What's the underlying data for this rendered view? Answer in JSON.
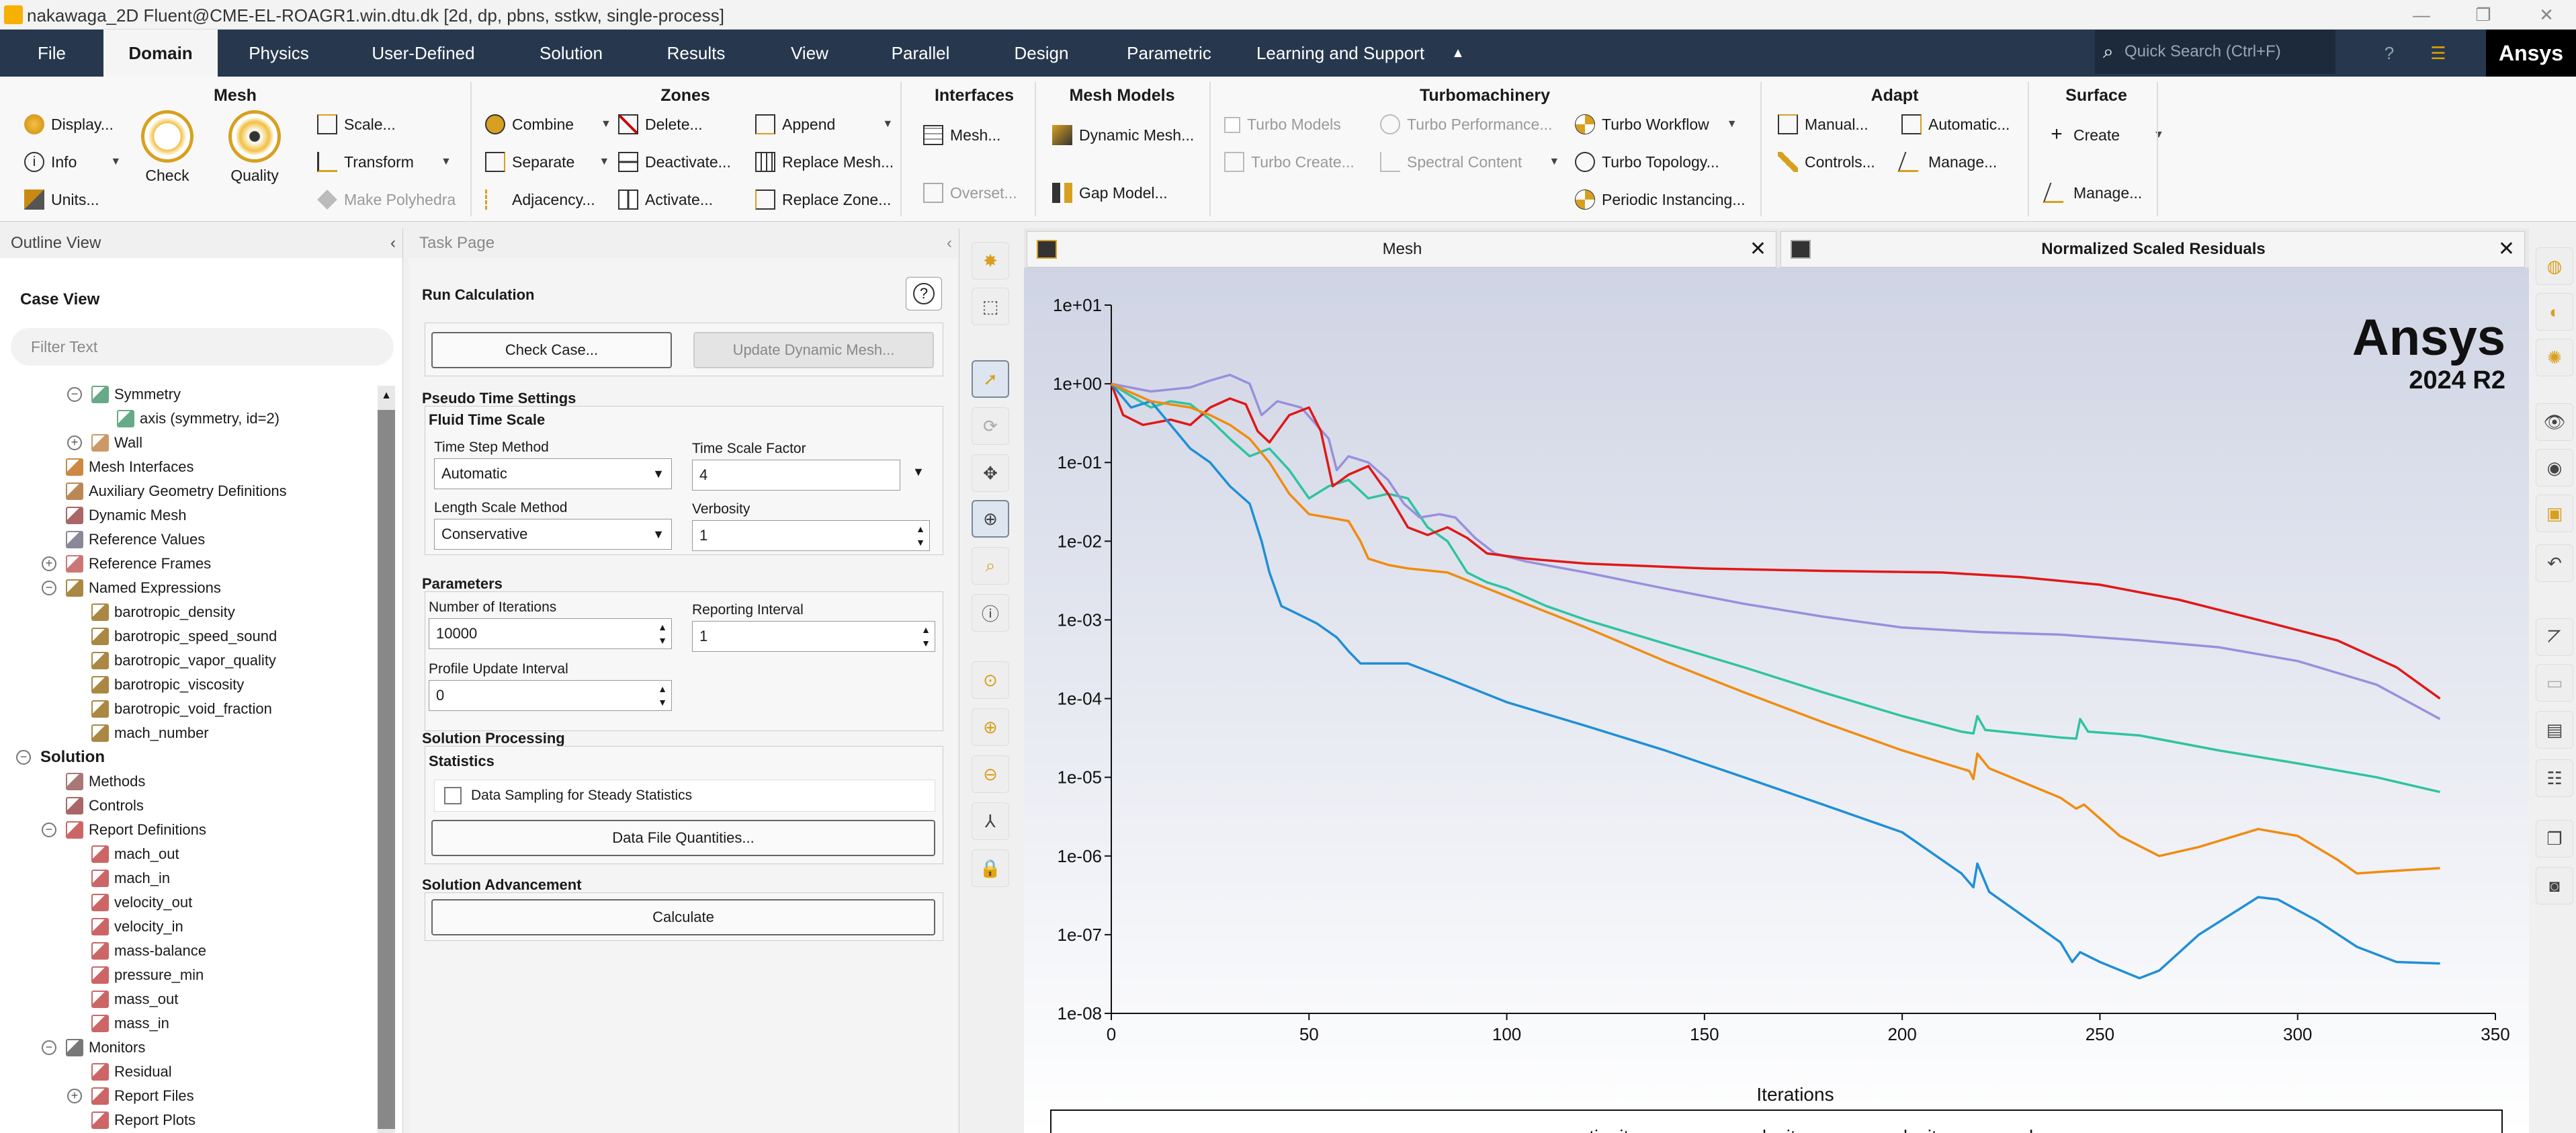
{
  "window": {
    "title": "nakawaga_2D Fluent@CME-EL-ROAGR1.win.dtu.dk  [2d, dp, pbns, sstkw, single-process]"
  },
  "menu": {
    "tabs": [
      "File",
      "Domain",
      "Physics",
      "User-Defined",
      "Solution",
      "Results",
      "View",
      "Parallel",
      "Design",
      "Parametric",
      "Learning and Support"
    ],
    "active": "Domain",
    "search_placeholder": "Quick Search (Ctrl+F)",
    "brand": "Ansys"
  },
  "ribbon": {
    "mesh": {
      "title": "Mesh",
      "display": "Display...",
      "info": "Info",
      "units": "Units...",
      "check": "Check",
      "quality": "Quality",
      "scale": "Scale...",
      "transform": "Transform",
      "make_polyhedra": "Make Polyhedra"
    },
    "zones": {
      "title": "Zones",
      "combine": "Combine",
      "separate": "Separate",
      "adjacency": "Adjacency...",
      "delete": "Delete...",
      "deactivate": "Deactivate...",
      "activate": "Activate...",
      "append": "Append",
      "replace_mesh": "Replace Mesh...",
      "replace_zone": "Replace Zone..."
    },
    "interfaces": {
      "title": "Interfaces",
      "mesh": "Mesh...",
      "overset": "Overset..."
    },
    "mesh_models": {
      "title": "Mesh Models",
      "dynamic_mesh": "Dynamic Mesh...",
      "gap_model": "Gap Model..."
    },
    "turbomachinery": {
      "title": "Turbomachinery",
      "turbo_models": "Turbo Models",
      "turbo_create": "Turbo Create...",
      "turbo_performance": "Turbo Performance...",
      "spectral_content": "Spectral Content",
      "turbo_workflow": "Turbo Workflow",
      "turbo_topology": "Turbo Topology...",
      "periodic_instancing": "Periodic Instancing..."
    },
    "adapt": {
      "title": "Adapt",
      "manual": "Manual...",
      "controls": "Controls...",
      "automatic": "Automatic...",
      "manage": "Manage..."
    },
    "surface": {
      "title": "Surface",
      "create": "Create",
      "manage": "Manage..."
    }
  },
  "outline": {
    "title": "Outline View",
    "case_view": "Case View",
    "filter_placeholder": "Filter Text",
    "rows": [
      {
        "label": "Symmetry",
        "indent": 2,
        "toggle": "−",
        "color": "#6a8"
      },
      {
        "label": "axis (symmetry, id=2)",
        "indent": 3,
        "toggle": "",
        "color": "#6a8"
      },
      {
        "label": "Wall",
        "indent": 2,
        "toggle": "+",
        "color": "#c96"
      },
      {
        "label": "Mesh Interfaces",
        "indent": 1,
        "toggle": "",
        "color": "#c84"
      },
      {
        "label": "Auxiliary Geometry Definitions",
        "indent": 1,
        "toggle": "",
        "color": "#b85"
      },
      {
        "label": "Dynamic Mesh",
        "indent": 1,
        "toggle": "",
        "color": "#a66"
      },
      {
        "label": "Reference Values",
        "indent": 1,
        "toggle": "",
        "color": "#889"
      },
      {
        "label": "Reference Frames",
        "indent": 1,
        "toggle": "+",
        "color": "#c77"
      },
      {
        "label": "Named Expressions",
        "indent": 1,
        "toggle": "−",
        "color": "#a84"
      },
      {
        "label": "barotropic_density",
        "indent": 2,
        "toggle": "",
        "color": "#a84"
      },
      {
        "label": "barotropic_speed_sound",
        "indent": 2,
        "toggle": "",
        "color": "#a84"
      },
      {
        "label": "barotropic_vapor_quality",
        "indent": 2,
        "toggle": "",
        "color": "#a84"
      },
      {
        "label": "barotropic_viscosity",
        "indent": 2,
        "toggle": "",
        "color": "#a84"
      },
      {
        "label": "barotropic_void_fraction",
        "indent": 2,
        "toggle": "",
        "color": "#a84"
      },
      {
        "label": "mach_number",
        "indent": 2,
        "toggle": "",
        "color": "#a84"
      },
      {
        "label": "Solution",
        "indent": 0,
        "toggle": "−",
        "color": "",
        "bold": true
      },
      {
        "label": "Methods",
        "indent": 1,
        "toggle": "",
        "color": "#a77"
      },
      {
        "label": "Controls",
        "indent": 1,
        "toggle": "",
        "color": "#a66"
      },
      {
        "label": "Report Definitions",
        "indent": 1,
        "toggle": "−",
        "color": "#c66"
      },
      {
        "label": "mach_out",
        "indent": 2,
        "toggle": "",
        "color": "#c66"
      },
      {
        "label": "mach_in",
        "indent": 2,
        "toggle": "",
        "color": "#c66"
      },
      {
        "label": "velocity_out",
        "indent": 2,
        "toggle": "",
        "color": "#c66"
      },
      {
        "label": "velocity_in",
        "indent": 2,
        "toggle": "",
        "color": "#c66"
      },
      {
        "label": "mass-balance",
        "indent": 2,
        "toggle": "",
        "color": "#c66"
      },
      {
        "label": "pressure_min",
        "indent": 2,
        "toggle": "",
        "color": "#c66"
      },
      {
        "label": "mass_out",
        "indent": 2,
        "toggle": "",
        "color": "#c66"
      },
      {
        "label": "mass_in",
        "indent": 2,
        "toggle": "",
        "color": "#c66"
      },
      {
        "label": "Monitors",
        "indent": 1,
        "toggle": "−",
        "color": "#777"
      },
      {
        "label": "Residual",
        "indent": 2,
        "toggle": "",
        "color": "#c66"
      },
      {
        "label": "Report Files",
        "indent": 2,
        "toggle": "+",
        "color": "#c66"
      },
      {
        "label": "Report Plots",
        "indent": 2,
        "toggle": "",
        "color": "#c66"
      }
    ]
  },
  "task": {
    "title": "Task Page",
    "heading": "Run Calculation",
    "check_case": "Check Case...",
    "update_dynamic_mesh": "Update Dynamic Mesh...",
    "pseudo_time": "Pseudo Time Settings",
    "fluid_time_scale": "Fluid Time Scale",
    "time_step_method_label": "Time Step Method",
    "time_step_method": "Automatic",
    "time_scale_factor_label": "Time Scale Factor",
    "time_scale_factor": "4",
    "length_scale_method_label": "Length Scale Method",
    "length_scale_method": "Conservative",
    "verbosity_label": "Verbosity",
    "verbosity": "1",
    "parameters": "Parameters",
    "iterations_label": "Number of Iterations",
    "iterations": "10000",
    "reporting_interval_label": "Reporting Interval",
    "reporting_interval": "1",
    "profile_update_label": "Profile Update Interval",
    "profile_update": "0",
    "solution_processing": "Solution Processing",
    "statistics": "Statistics",
    "data_sampling": "Data Sampling for Steady Statistics",
    "data_file_quantities": "Data File Quantities...",
    "solution_advancement": "Solution Advancement",
    "calculate": "Calculate"
  },
  "graphics": {
    "tab_mesh": "Mesh",
    "tab_residuals": "Normalized Scaled Residuals",
    "watermark_brand": "Ansys",
    "watermark_version": "2024 R2"
  },
  "chart_data": {
    "type": "line",
    "xlabel": "Iterations",
    "ylabel": "",
    "xlim": [
      0,
      350
    ],
    "ylim": [
      1e-08,
      10
    ],
    "yscale": "log",
    "xticks": [
      0,
      50,
      100,
      150,
      200,
      250,
      300,
      350
    ],
    "yticks": [
      "1e-08",
      "1e-07",
      "1e-06",
      "1e-05",
      "1e-04",
      "1e-03",
      "1e-02",
      "1e-01",
      "1e+00",
      "1e+01"
    ],
    "legend_position": "bottom",
    "series": [
      {
        "name": "continuity",
        "color": "#2ec4a0",
        "points": [
          [
            0,
            1
          ],
          [
            5,
            0.7
          ],
          [
            10,
            0.5
          ],
          [
            15,
            0.6
          ],
          [
            20,
            0.55
          ],
          [
            25,
            0.35
          ],
          [
            30,
            0.2
          ],
          [
            35,
            0.12
          ],
          [
            40,
            0.15
          ],
          [
            45,
            0.08
          ],
          [
            50,
            0.035
          ],
          [
            55,
            0.05
          ],
          [
            60,
            0.06
          ],
          [
            65,
            0.035
          ],
          [
            70,
            0.04
          ],
          [
            75,
            0.035
          ],
          [
            80,
            0.015
          ],
          [
            85,
            0.01
          ],
          [
            90,
            0.004
          ],
          [
            95,
            0.003
          ],
          [
            100,
            0.0025
          ],
          [
            110,
            0.0015
          ],
          [
            120,
            0.001
          ],
          [
            140,
            0.0005
          ],
          [
            160,
            0.00025
          ],
          [
            180,
            0.00012
          ],
          [
            200,
            6e-05
          ],
          [
            215,
            3.8e-05
          ],
          [
            218,
            3.6e-05
          ],
          [
            219,
            6e-05
          ],
          [
            221,
            4e-05
          ],
          [
            240,
            3.2e-05
          ],
          [
            244,
            3.1e-05
          ],
          [
            245,
            5.5e-05
          ],
          [
            247,
            3.8e-05
          ],
          [
            260,
            3.4e-05
          ],
          [
            280,
            2.2e-05
          ],
          [
            300,
            1.5e-05
          ],
          [
            320,
            1e-05
          ],
          [
            336,
            6.5e-06
          ]
        ]
      },
      {
        "name": "x-velocity",
        "color": "#9a8fdc",
        "points": [
          [
            0,
            1
          ],
          [
            10,
            0.8
          ],
          [
            20,
            0.9
          ],
          [
            25,
            1.1
          ],
          [
            30,
            1.3
          ],
          [
            35,
            1.0
          ],
          [
            38,
            0.4
          ],
          [
            42,
            0.6
          ],
          [
            48,
            0.5
          ],
          [
            55,
            0.2
          ],
          [
            57,
            0.08
          ],
          [
            60,
            0.12
          ],
          [
            65,
            0.1
          ],
          [
            70,
            0.06
          ],
          [
            74,
            0.03
          ],
          [
            78,
            0.02
          ],
          [
            83,
            0.022
          ],
          [
            87,
            0.02
          ],
          [
            92,
            0.011
          ],
          [
            97,
            0.007
          ],
          [
            105,
            0.0055
          ],
          [
            120,
            0.004
          ],
          [
            140,
            0.0025
          ],
          [
            160,
            0.0016
          ],
          [
            180,
            0.0011
          ],
          [
            200,
            0.0008
          ],
          [
            220,
            0.0007
          ],
          [
            240,
            0.00065
          ],
          [
            260,
            0.00055
          ],
          [
            280,
            0.00045
          ],
          [
            300,
            0.0003
          ],
          [
            320,
            0.00015
          ],
          [
            336,
            5.5e-05
          ]
        ]
      },
      {
        "name": "y-velocity",
        "color": "#e01818",
        "points": [
          [
            0,
            1
          ],
          [
            3,
            0.4
          ],
          [
            8,
            0.3
          ],
          [
            15,
            0.35
          ],
          [
            20,
            0.3
          ],
          [
            25,
            0.5
          ],
          [
            30,
            0.65
          ],
          [
            34,
            0.55
          ],
          [
            37,
            0.25
          ],
          [
            40,
            0.18
          ],
          [
            45,
            0.4
          ],
          [
            50,
            0.5
          ],
          [
            53,
            0.25
          ],
          [
            56,
            0.05
          ],
          [
            60,
            0.07
          ],
          [
            65,
            0.09
          ],
          [
            70,
            0.04
          ],
          [
            75,
            0.015
          ],
          [
            80,
            0.012
          ],
          [
            85,
            0.015
          ],
          [
            90,
            0.011
          ],
          [
            95,
            0.007
          ],
          [
            105,
            0.006
          ],
          [
            120,
            0.0052
          ],
          [
            150,
            0.0045
          ],
          [
            180,
            0.0042
          ],
          [
            210,
            0.004
          ],
          [
            230,
            0.0035
          ],
          [
            250,
            0.0028
          ],
          [
            270,
            0.0018
          ],
          [
            290,
            0.001
          ],
          [
            310,
            0.00055
          ],
          [
            325,
            0.00025
          ],
          [
            336,
            0.0001
          ]
        ]
      },
      {
        "name": "k",
        "color": "#1f8fd6",
        "points": [
          [
            0,
            1
          ],
          [
            5,
            0.5
          ],
          [
            10,
            0.6
          ],
          [
            15,
            0.3
          ],
          [
            20,
            0.15
          ],
          [
            25,
            0.1
          ],
          [
            30,
            0.05
          ],
          [
            35,
            0.03
          ],
          [
            38,
            0.01
          ],
          [
            40,
            0.004
          ],
          [
            43,
            0.0015
          ],
          [
            47,
            0.0012
          ],
          [
            52,
            0.0009
          ],
          [
            57,
            0.0006
          ],
          [
            60,
            0.0004
          ],
          [
            63,
            0.00028
          ],
          [
            70,
            0.00028
          ],
          [
            75,
            0.00028
          ],
          [
            85,
            0.00018
          ],
          [
            100,
            9e-05
          ],
          [
            120,
            4.5e-05
          ],
          [
            140,
            2.2e-05
          ],
          [
            160,
            1e-05
          ],
          [
            180,
            4.5e-06
          ],
          [
            200,
            2e-06
          ],
          [
            215,
            6e-07
          ],
          [
            218,
            4e-07
          ],
          [
            219,
            8e-07
          ],
          [
            222,
            3.5e-07
          ],
          [
            240,
            8e-08
          ],
          [
            243,
            4.5e-08
          ],
          [
            245,
            6e-08
          ],
          [
            250,
            4.5e-08
          ],
          [
            260,
            2.8e-08
          ],
          [
            265,
            3.5e-08
          ],
          [
            275,
            1e-07
          ],
          [
            290,
            3e-07
          ],
          [
            295,
            2.8e-07
          ],
          [
            305,
            1.5e-07
          ],
          [
            315,
            7e-08
          ],
          [
            325,
            4.5e-08
          ],
          [
            336,
            4.3e-08
          ]
        ]
      },
      {
        "name": "omega",
        "color": "#f08c10",
        "points": [
          [
            0,
            1
          ],
          [
            10,
            0.6
          ],
          [
            20,
            0.5
          ],
          [
            25,
            0.4
          ],
          [
            30,
            0.3
          ],
          [
            35,
            0.2
          ],
          [
            40,
            0.1
          ],
          [
            45,
            0.04
          ],
          [
            50,
            0.022
          ],
          [
            55,
            0.02
          ],
          [
            60,
            0.018
          ],
          [
            63,
            0.01
          ],
          [
            65,
            0.006
          ],
          [
            70,
            0.005
          ],
          [
            75,
            0.0045
          ],
          [
            85,
            0.004
          ],
          [
            100,
            0.002
          ],
          [
            120,
            0.0008
          ],
          [
            140,
            0.0003
          ],
          [
            160,
            0.00012
          ],
          [
            180,
            5e-05
          ],
          [
            200,
            2.2e-05
          ],
          [
            217,
            1.2e-05
          ],
          [
            218,
            9.5e-06
          ],
          [
            219,
            2e-05
          ],
          [
            222,
            1.3e-05
          ],
          [
            240,
            5.5e-06
          ],
          [
            244,
            4e-06
          ],
          [
            246,
            4.5e-06
          ],
          [
            255,
            1.8e-06
          ],
          [
            265,
            1e-06
          ],
          [
            275,
            1.3e-06
          ],
          [
            290,
            2.2e-06
          ],
          [
            300,
            1.8e-06
          ],
          [
            310,
            9e-07
          ],
          [
            315,
            6e-07
          ],
          [
            325,
            6.5e-07
          ],
          [
            336,
            7e-07
          ]
        ]
      }
    ]
  }
}
